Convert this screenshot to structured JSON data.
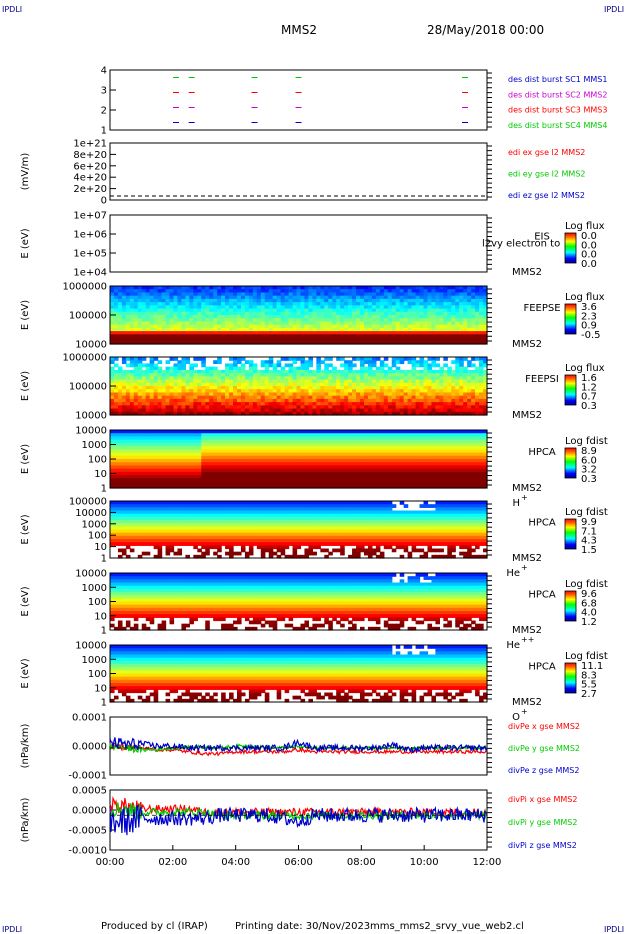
{
  "header": {
    "spacecraft": "MMS2",
    "date": "28/May/2018 00:00",
    "corner_tl": "IPDLI",
    "corner_tr": "IPDLI",
    "corner_bl": "IPDLI",
    "corner_br": "IPDLI"
  },
  "footer": {
    "produced": "Produced by cl (IRAP)",
    "printing_date": "Printing date: 30/Nov/2023",
    "filename": "mms_mms2_srvy_vue_web2.cl"
  },
  "time_axis": {
    "ticks": [
      "00:00",
      "02:00",
      "04:00",
      "06:00",
      "08:00",
      "10:00",
      "12:00"
    ],
    "range_hours": [
      0,
      12
    ]
  },
  "colors": {
    "mms1": "#0000cc",
    "mms2": "#cc00cc",
    "mms3": "#ff0000",
    "mms4": "#00cc00",
    "x": "#ff0000",
    "y": "#00cc00",
    "z": "#0000cc"
  },
  "panels": [
    {
      "id": "burst",
      "ylabel": "",
      "yticks": [
        "4",
        "3",
        "2",
        "1"
      ],
      "right_labels": [
        {
          "text": "des dist burst SC1 MMS1",
          "color": "#0000cc"
        },
        {
          "text": "des dist burst SC2 MMS2",
          "color": "#cc00cc"
        },
        {
          "text": "des dist burst SC3 MMS3",
          "color": "#ff0000"
        },
        {
          "text": "des dist burst SC4 MMS4",
          "color": "#00cc00"
        }
      ]
    },
    {
      "id": "edi",
      "ylabel": "(mV/m)",
      "yticks": [
        "1e+21",
        "8e+20",
        "6e+20",
        "4e+20",
        "2e+20",
        "0"
      ],
      "right_labels": [
        {
          "text": "edi ex gse l2 MMS2",
          "color": "#ff0000"
        },
        {
          "text": "edi ey gse l2 MMS2",
          "color": "#00cc00"
        },
        {
          "text": "edi ez gse l2 MMS2",
          "color": "#0000cc"
        }
      ]
    },
    {
      "id": "eis",
      "ylabel": "E (eV)",
      "yticks": [
        "1e+07",
        "1e+06",
        "1e+05",
        "1e+04"
      ],
      "instrument": "EIS",
      "instrument_extra": "l2vy electron to",
      "sc": "MMS2",
      "cb_title": "Log flux",
      "cb_values": [
        "0.0",
        "0.0",
        "0.0",
        "0.0"
      ]
    },
    {
      "id": "feepse",
      "ylabel": "E (eV)",
      "yticks": [
        "1000000",
        "100000",
        "10000"
      ],
      "instrument": "FEEPSE",
      "sc": "MMS2",
      "cb_title": "Log flux",
      "cb_values": [
        "3.6",
        "2.3",
        "0.9",
        "-0.5"
      ]
    },
    {
      "id": "feepsi",
      "ylabel": "E (eV)",
      "yticks": [
        "1000000",
        "100000",
        "10000"
      ],
      "instrument": "FEEPSI",
      "sc": "MMS2",
      "cb_title": "Log flux",
      "cb_values": [
        "1.6",
        "1.2",
        "0.7",
        "0.3"
      ]
    },
    {
      "id": "hpca_h",
      "ylabel": "E (eV)",
      "yticks": [
        "10000",
        "1000",
        "100",
        "10",
        "1"
      ],
      "instrument": "HPCA",
      "sc": "MMS2",
      "species": "H",
      "species_sup": "+",
      "cb_title": "Log fdist",
      "cb_values": [
        "8.9",
        "6.0",
        "3.2",
        "0.3"
      ]
    },
    {
      "id": "hpca_he",
      "ylabel": "E (eV)",
      "yticks": [
        "100000",
        "10000",
        "1000",
        "100",
        "10",
        "1"
      ],
      "instrument": "HPCA",
      "sc": "MMS2",
      "species": "He",
      "species_sup": "+",
      "cb_title": "Log fdist",
      "cb_values": [
        "9.9",
        "7.1",
        "4.3",
        "1.5"
      ]
    },
    {
      "id": "hpca_hepp",
      "ylabel": "E (eV)",
      "yticks": [
        "10000",
        "1000",
        "100",
        "10",
        "1"
      ],
      "instrument": "HPCA",
      "sc": "MMS2",
      "species": "He",
      "species_sup": "++",
      "cb_title": "Log fdist",
      "cb_values": [
        "9.6",
        "6.8",
        "4.0",
        "1.2"
      ]
    },
    {
      "id": "hpca_o",
      "ylabel": "E (eV)",
      "yticks": [
        "10000",
        "1000",
        "100",
        "10",
        "1"
      ],
      "instrument": "HPCA",
      "sc": "MMS2",
      "species": "O",
      "species_sup": "+",
      "cb_title": "Log fdist",
      "cb_values": [
        "11.1",
        "8.3",
        "5.5",
        "2.7"
      ]
    },
    {
      "id": "divpe",
      "ylabel": "(nPa/km)",
      "yticks": [
        "0.0001",
        "0.0000",
        "-0.0001"
      ],
      "right_labels": [
        {
          "text": "divPe x gse MMS2",
          "color": "#ff0000"
        },
        {
          "text": "divPe y gse MMS2",
          "color": "#00cc00"
        },
        {
          "text": "divPe z gse MMS2",
          "color": "#0000cc"
        }
      ]
    },
    {
      "id": "divpi",
      "ylabel": "(nPa/km)",
      "yticks": [
        "0.0005",
        "0.0000",
        "-0.0005",
        "-0.0010"
      ],
      "right_labels": [
        {
          "text": "divPi x gse MMS2",
          "color": "#ff0000"
        },
        {
          "text": "divPi y gse MMS2",
          "color": "#00cc00"
        },
        {
          "text": "divPi z gse MMS2",
          "color": "#0000cc"
        }
      ]
    }
  ],
  "chart_data": [
    {
      "type": "scatter",
      "panel": "burst",
      "y_range": [
        0.5,
        4.5
      ],
      "series": [
        {
          "name": "des dist burst SC1 MMS1",
          "y": 1,
          "x_hours": [
            2.1,
            2.6,
            4.6,
            6.0,
            11.3
          ]
        },
        {
          "name": "des dist burst SC2 MMS2",
          "y": 2,
          "x_hours": [
            2.1,
            2.6,
            4.6,
            6.0,
            11.3
          ]
        },
        {
          "name": "des dist burst SC3 MMS3",
          "y": 3,
          "x_hours": [
            2.1,
            2.6,
            4.6,
            6.0,
            11.3
          ]
        },
        {
          "name": "des dist burst SC4 MMS4",
          "y": 4,
          "x_hours": [
            2.1,
            2.6,
            4.6,
            6.0,
            11.3
          ]
        }
      ]
    },
    {
      "type": "line",
      "panel": "edi",
      "y_range": [
        0,
        1e+21
      ],
      "series": [
        {
          "name": "edi ex gse l2 MMS2",
          "values": []
        },
        {
          "name": "edi ey gse l2 MMS2",
          "values": []
        },
        {
          "name": "edi ez gse l2 MMS2",
          "values": []
        }
      ]
    },
    {
      "type": "heatmap",
      "panel": "eis",
      "y_range_eV": [
        10000.0,
        10000000.0
      ],
      "log_y": true
    },
    {
      "type": "heatmap",
      "panel": "feepse",
      "y_range_eV": [
        10000.0,
        1000000.0
      ],
      "log_y": true,
      "colorbar_range": [
        -0.5,
        3.6
      ]
    },
    {
      "type": "heatmap",
      "panel": "feepsi",
      "y_range_eV": [
        10000.0,
        1000000.0
      ],
      "log_y": true,
      "colorbar_range": [
        0.3,
        1.6
      ]
    },
    {
      "type": "heatmap",
      "panel": "hpca_h",
      "y_range_eV": [
        1,
        10000.0
      ],
      "log_y": true,
      "colorbar_range": [
        0.3,
        8.9
      ]
    },
    {
      "type": "heatmap",
      "panel": "hpca_he",
      "y_range_eV": [
        1,
        100000.0
      ],
      "log_y": true,
      "colorbar_range": [
        1.5,
        9.9
      ]
    },
    {
      "type": "heatmap",
      "panel": "hpca_hepp",
      "y_range_eV": [
        1,
        10000.0
      ],
      "log_y": true,
      "colorbar_range": [
        1.2,
        9.6
      ]
    },
    {
      "type": "heatmap",
      "panel": "hpca_o",
      "y_range_eV": [
        1,
        10000.0
      ],
      "log_y": true,
      "colorbar_range": [
        2.7,
        11.1
      ]
    },
    {
      "type": "line",
      "panel": "divpe",
      "y_range": [
        -0.00014,
        0.00016
      ],
      "x_hours": [
        0,
        0.5,
        1,
        1.5,
        2,
        2.5,
        3,
        3.5,
        4,
        4.5,
        5,
        5.5,
        6,
        6.5,
        7,
        7.5,
        8,
        8.5,
        9,
        9.5,
        10,
        10.5,
        11,
        11.5,
        12
      ],
      "series": [
        {
          "name": "divPe x gse MMS2",
          "values": [
            1e-05,
            5e-06,
            0.0,
            -1e-05,
            -1e-05,
            -2e-05,
            -3e-05,
            -3e-05,
            -2e-05,
            -2e-05,
            -2e-05,
            -2e-05,
            -1e-05,
            -2e-05,
            -2e-05,
            -2e-05,
            -2e-05,
            -2e-05,
            -2e-05,
            -2e-05,
            -2e-05,
            -2e-05,
            -2e-05,
            -2e-05,
            -2e-05
          ]
        },
        {
          "name": "divPe y gse MMS2",
          "values": [
            1e-05,
            0.0,
            -1e-05,
            -1e-05,
            0.0,
            5e-06,
            5e-06,
            0.0,
            1e-05,
            1e-05,
            0.0,
            0.0,
            1e-05,
            0.0,
            0.0,
            0.0,
            5e-06,
            0.0,
            0.0,
            -5e-06,
            0.0,
            0.0,
            0.0,
            0.0,
            0.0
          ]
        },
        {
          "name": "divPe z gse MMS2",
          "values": [
            3e-05,
            2e-05,
            2e-05,
            1e-05,
            1e-05,
            0.0,
            0.0,
            0.0,
            0.0,
            0.0,
            0.0,
            0.0,
            3e-05,
            0.0,
            0.0,
            0.0,
            0.0,
            0.0,
            2e-05,
            -1e-05,
            0.0,
            0.0,
            0.0,
            0.0,
            0.0
          ]
        }
      ]
    },
    {
      "type": "line",
      "panel": "divpi",
      "y_range": [
        -0.0011,
        0.0008
      ],
      "x_hours": [
        0,
        0.5,
        1,
        1.5,
        2,
        2.5,
        3,
        3.5,
        4,
        4.5,
        5,
        5.5,
        6,
        6.5,
        7,
        7.5,
        8,
        8.5,
        9,
        9.5,
        10,
        10.5,
        11,
        11.5,
        12
      ],
      "series": [
        {
          "name": "divPi x gse MMS2",
          "values": [
            0.0003,
            0.0003,
            0.0002,
            0.0002,
            0.0002,
            0.0002,
            0.0001,
            0.0001,
            0.0001,
            0.0001,
            0.0001,
            0.0001,
            0.0001,
            0.0001,
            0.0001,
            0.0001,
            0.0001,
            0.0001,
            0.0001,
            0.0001,
            0.0001,
            0.0001,
            0.0001,
            0.0001,
            0.0001
          ]
        },
        {
          "name": "divPi y gse MMS2",
          "values": [
            0.0002,
            0.0002,
            0.0001,
            0.0001,
            0.0001,
            0.0001,
            0.0001,
            0.0,
            0.0,
            0.0,
            0.0,
            0.0,
            0.0,
            0.0,
            0.0,
            0.0,
            0.0,
            0.0,
            0.0,
            0.0,
            0.0,
            0.0,
            0.0,
            0.0,
            0.0
          ]
        },
        {
          "name": "divPi z gse MMS2",
          "values": [
            -0.0002,
            -0.0002,
            -0.0001,
            -0.0001,
            -0.0001,
            -0.0001,
            -0.0001,
            0.0,
            0.0,
            0.0,
            0.0,
            -0.0001,
            -0.0002,
            0.0,
            0.0,
            0.0,
            0.0,
            0.0,
            0.0,
            0.0,
            0.0,
            0.0,
            0.0,
            0.0,
            0.0
          ]
        }
      ]
    }
  ]
}
